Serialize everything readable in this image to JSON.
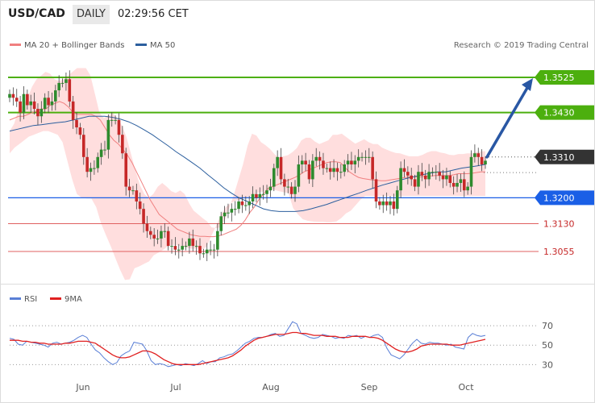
{
  "header": {
    "pair": "USD/CAD",
    "timeframe": "DAILY",
    "time": "02:29:56 CET"
  },
  "legend": {
    "items": [
      {
        "label": "MA 20 + Bollinger Bands",
        "color": "#f08080"
      },
      {
        "label": "MA 50",
        "color": "#2c5f9e"
      }
    ],
    "rsi_items": [
      {
        "label": "RSI",
        "color": "#5a7fd6"
      },
      {
        "label": "9MA",
        "color": "#e02020"
      }
    ]
  },
  "copyright": "Research © 2019 Trading Central",
  "colors": {
    "up": "#2e8b2e",
    "down": "#c62828",
    "bands": "#ffdede",
    "resistance": "#4caf0e",
    "pivot": "#1a5fe6",
    "support": "#e06060",
    "arrow": "#2957a4"
  },
  "chart_data": [
    {
      "type": "candlestick",
      "x_labels": [
        "Jun",
        "Jul",
        "Aug",
        "Sep",
        "Oct"
      ],
      "ylim": [
        1.296,
        1.357
      ],
      "levels": [
        {
          "label": "1.3525",
          "value": 1.3525,
          "kind": "resistance"
        },
        {
          "label": "1.3430",
          "value": 1.343,
          "kind": "resistance"
        },
        {
          "label": "1.3310",
          "value": 1.331,
          "kind": "current"
        },
        {
          "label": "1.3200",
          "value": 1.32,
          "kind": "pivot"
        },
        {
          "label": "1.3130",
          "value": 1.313,
          "kind": "support"
        },
        {
          "label": "1.3055",
          "value": 1.3055,
          "kind": "support"
        }
      ],
      "closes": [
        1.348,
        1.347,
        1.346,
        1.343,
        1.348,
        1.345,
        1.346,
        1.344,
        1.342,
        1.344,
        1.347,
        1.345,
        1.346,
        1.349,
        1.351,
        1.351,
        1.352,
        1.346,
        1.341,
        1.339,
        1.337,
        1.331,
        1.327,
        1.328,
        1.328,
        1.331,
        1.333,
        1.333,
        1.341,
        1.341,
        1.341,
        1.337,
        1.332,
        1.323,
        1.322,
        1.322,
        1.319,
        1.317,
        1.313,
        1.311,
        1.31,
        1.309,
        1.309,
        1.311,
        1.311,
        1.307,
        1.307,
        1.306,
        1.306,
        1.307,
        1.307,
        1.309,
        1.307,
        1.307,
        1.305,
        1.305,
        1.306,
        1.306,
        1.306,
        1.311,
        1.315,
        1.316,
        1.316,
        1.317,
        1.317,
        1.319,
        1.318,
        1.318,
        1.319,
        1.321,
        1.32,
        1.321,
        1.321,
        1.322,
        1.323,
        1.328,
        1.331,
        1.325,
        1.323,
        1.323,
        1.321,
        1.323,
        1.329,
        1.33,
        1.329,
        1.325,
        1.33,
        1.331,
        1.33,
        1.328,
        1.328,
        1.327,
        1.328,
        1.327,
        1.327,
        1.329,
        1.33,
        1.329,
        1.33,
        1.331,
        1.331,
        1.331,
        1.331,
        1.325,
        1.319,
        1.318,
        1.319,
        1.318,
        1.319,
        1.317,
        1.322,
        1.328,
        1.327,
        1.326,
        1.325,
        1.323,
        1.327,
        1.326,
        1.325,
        1.327,
        1.327,
        1.327,
        1.326,
        1.325,
        1.326,
        1.324,
        1.323,
        1.324,
        1.325,
        1.322,
        1.323,
        1.331,
        1.332,
        1.331,
        1.329,
        1.33
      ],
      "ma20": [
        1.341,
        1.3415,
        1.342,
        1.342,
        1.3425,
        1.343,
        1.3435,
        1.344,
        1.344,
        1.345,
        1.3455,
        1.346,
        1.3455,
        1.3445,
        1.343,
        1.3425,
        1.3425,
        1.3425,
        1.3425,
        1.342,
        1.341,
        1.339,
        1.337,
        1.3355,
        1.3345,
        1.333,
        1.3315,
        1.3295,
        1.327,
        1.3245,
        1.322,
        1.3195,
        1.3175,
        1.3155,
        1.3145,
        1.3135,
        1.3125,
        1.3115,
        1.311,
        1.3105,
        1.31,
        1.3098,
        1.3096,
        1.3096,
        1.3095,
        1.3095,
        1.3097,
        1.31,
        1.3105,
        1.311,
        1.3115,
        1.3125,
        1.314,
        1.316,
        1.3175,
        1.3195,
        1.321,
        1.3225,
        1.323,
        1.3235,
        1.324,
        1.3245,
        1.325,
        1.3255,
        1.3262,
        1.327,
        1.3275,
        1.328,
        1.3285,
        1.329,
        1.3295,
        1.3297,
        1.3297,
        1.3295,
        1.3282,
        1.327,
        1.3262,
        1.3255,
        1.3252,
        1.325,
        1.3248,
        1.3247,
        1.3246,
        1.3246,
        1.3248,
        1.325,
        1.3252,
        1.3254,
        1.3256,
        1.3256,
        1.3256,
        1.3257,
        1.3258,
        1.3259,
        1.326,
        1.326,
        1.326,
        1.326,
        1.3262,
        1.3265,
        1.3265,
        1.3265,
        1.3266,
        1.3268,
        1.327,
        1.327
      ],
      "ma50": [
        1.338,
        1.3385,
        1.339,
        1.3395,
        1.3397,
        1.34,
        1.3403,
        1.3405,
        1.341,
        1.3415,
        1.342,
        1.342,
        1.342,
        1.3417,
        1.3412,
        1.3405,
        1.3395,
        1.3383,
        1.337,
        1.3355,
        1.334,
        1.3324,
        1.331,
        1.3295,
        1.328,
        1.3262,
        1.3245,
        1.3227,
        1.3212,
        1.3199,
        1.319,
        1.318,
        1.317,
        1.3165,
        1.3163,
        1.3163,
        1.3163,
        1.3165,
        1.317,
        1.3176,
        1.3182,
        1.319,
        1.3197,
        1.3205,
        1.3212,
        1.322,
        1.3227,
        1.3234,
        1.324,
        1.3246,
        1.3252,
        1.3257,
        1.3262,
        1.3266,
        1.327,
        1.327,
        1.3275,
        1.328,
        1.3283,
        1.3286,
        1.329
      ],
      "ma20_fine_step": 1,
      "bb_upper": [
        1.338,
        1.34,
        1.344,
        1.345,
        1.347,
        1.35,
        1.352,
        1.353,
        1.354,
        1.3535,
        1.352,
        1.3515,
        1.352,
        1.353,
        1.354,
        1.355,
        1.355,
        1.355,
        1.353,
        1.348,
        1.343,
        1.3415,
        1.3423,
        1.3428,
        1.3415,
        1.3395,
        1.3365,
        1.332,
        1.3275,
        1.3235,
        1.321,
        1.32,
        1.321,
        1.323,
        1.324,
        1.323,
        1.3218,
        1.3213,
        1.322,
        1.321,
        1.3185,
        1.3165,
        1.3155,
        1.3145,
        1.3136,
        1.312,
        1.3118,
        1.312,
        1.3142,
        1.3175,
        1.321,
        1.325,
        1.329,
        1.334,
        1.3373,
        1.3368,
        1.335,
        1.3342,
        1.3332,
        1.3318,
        1.3307,
        1.3312,
        1.3315,
        1.3323,
        1.3334,
        1.3355,
        1.3362,
        1.3362,
        1.3352,
        1.3345,
        1.335,
        1.3355,
        1.337,
        1.337,
        1.3373,
        1.3364,
        1.3355,
        1.3346,
        1.3352,
        1.3358,
        1.335,
        1.3345,
        1.3345,
        1.3335,
        1.333,
        1.3325,
        1.3321,
        1.332,
        1.3316,
        1.3312,
        1.3312,
        1.3312,
        1.3316,
        1.3322,
        1.3326,
        1.3326,
        1.3322,
        1.332,
        1.3316,
        1.3315,
        1.3318,
        1.3318,
        1.332,
        1.332,
        1.3323,
        1.3325,
        1.3326
      ],
      "bb_lower": [
        1.332,
        1.3335,
        1.3345,
        1.3355,
        1.3365,
        1.337,
        1.3375,
        1.338,
        1.338,
        1.3375,
        1.337,
        1.335,
        1.33,
        1.325,
        1.321,
        1.32,
        1.3198,
        1.3198,
        1.3175,
        1.3132,
        1.31,
        1.307,
        1.3037,
        1.3005,
        1.2978,
        1.298,
        1.301,
        1.3015,
        1.3022,
        1.3028,
        1.3045,
        1.3052,
        1.306,
        1.307,
        1.3073,
        1.3072,
        1.3068,
        1.3065,
        1.3062,
        1.3063,
        1.306,
        1.3068,
        1.3098,
        1.3125,
        1.3155,
        1.3175,
        1.3185,
        1.3192,
        1.3195,
        1.3198,
        1.3205,
        1.321,
        1.3215,
        1.3217,
        1.322,
        1.3222,
        1.3218,
        1.3215,
        1.3213,
        1.3172,
        1.3155,
        1.3142,
        1.3138,
        1.3136,
        1.3135,
        1.3135,
        1.3134,
        1.3134,
        1.3136,
        1.3145,
        1.3158,
        1.3165,
        1.318,
        1.3195,
        1.3205,
        1.3205,
        1.3205,
        1.3205,
        1.3205,
        1.3205,
        1.3205,
        1.3205,
        1.3205,
        1.3205,
        1.3205,
        1.3205,
        1.3205,
        1.3205,
        1.3205,
        1.3205,
        1.3205,
        1.3205,
        1.3205,
        1.3205,
        1.3205,
        1.3205,
        1.3205,
        1.3205,
        1.3205,
        1.3205
      ]
    },
    {
      "type": "line",
      "ylim": [
        22,
        80
      ],
      "y_ticks": [
        30,
        50,
        70
      ],
      "series": [
        {
          "name": "RSI",
          "values": [
            57,
            56,
            51,
            50,
            54,
            53,
            52,
            51,
            50,
            48,
            52,
            53,
            51,
            52,
            53,
            55,
            58,
            60,
            58,
            51,
            45,
            42,
            37,
            33,
            30,
            32,
            39,
            42,
            44,
            53,
            52,
            51,
            44,
            34,
            30,
            31,
            30,
            28,
            29,
            30,
            29,
            31,
            30,
            29,
            31,
            34,
            31,
            33,
            33,
            37,
            38,
            40,
            41,
            44,
            48,
            52,
            54,
            57,
            58,
            58,
            59,
            61,
            62,
            59,
            60,
            67,
            74,
            72,
            62,
            60,
            58,
            57,
            58,
            61,
            60,
            59,
            57,
            58,
            57,
            60,
            59,
            60,
            57,
            59,
            58,
            60,
            61,
            58,
            47,
            40,
            38,
            36,
            40,
            46,
            52,
            56,
            52,
            51,
            53,
            52,
            52,
            51,
            50,
            51,
            48,
            47,
            46,
            58,
            62,
            60,
            59,
            60
          ]
        },
        {
          "name": "9MA",
          "values": [
            55,
            55,
            55,
            54,
            54,
            53,
            53,
            52,
            52,
            51,
            51,
            51,
            51,
            52,
            52,
            53,
            54,
            54,
            54,
            53,
            52,
            49,
            46,
            43,
            40,
            38,
            37,
            37,
            38,
            40,
            42,
            44,
            44,
            43,
            41,
            38,
            35,
            33,
            31,
            30,
            30,
            30,
            30,
            30,
            30,
            31,
            32,
            33,
            34,
            35,
            36,
            37,
            39,
            42,
            45,
            49,
            52,
            55,
            57,
            58,
            59,
            60,
            61,
            61,
            61,
            62,
            63,
            63,
            62,
            62,
            61,
            60,
            60,
            60,
            59,
            59,
            59,
            58,
            58,
            58,
            59,
            59,
            59,
            59,
            58,
            58,
            57,
            55,
            52,
            49,
            46,
            44,
            43,
            43,
            44,
            46,
            49,
            50,
            51,
            51,
            51,
            51,
            51,
            50,
            50,
            50,
            51,
            52,
            53,
            54,
            55,
            56
          ]
        }
      ]
    }
  ]
}
